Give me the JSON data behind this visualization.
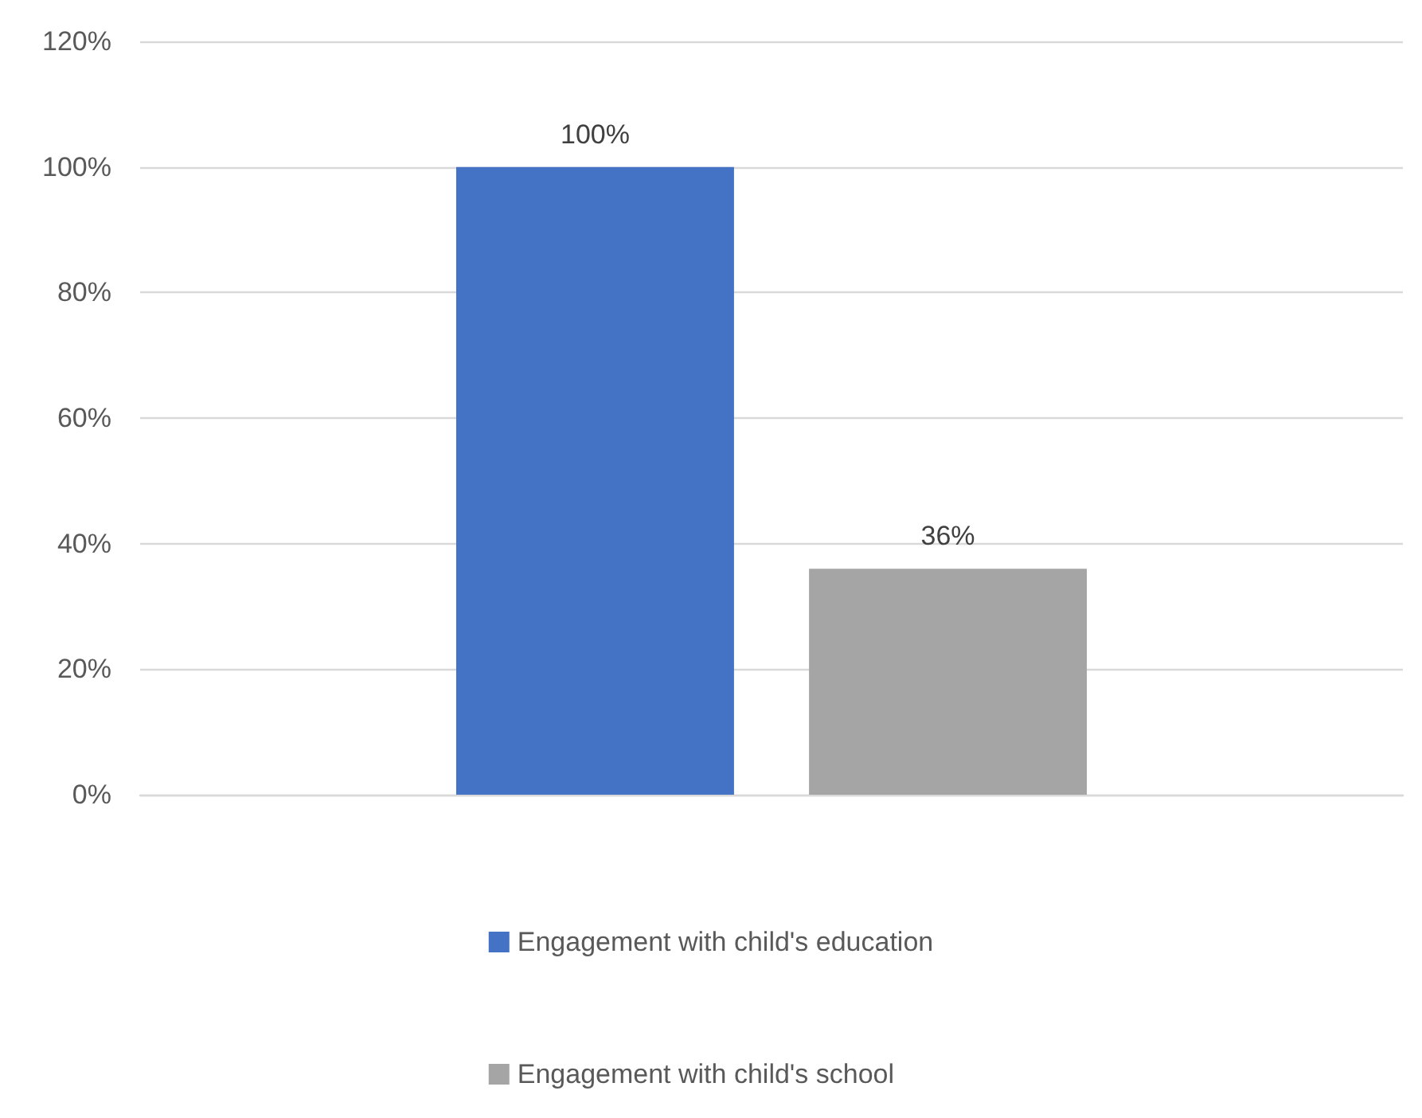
{
  "chart_data": {
    "type": "bar",
    "categories": [
      null
    ],
    "series": [
      {
        "name": "Engagement with child's education",
        "color": "#4472c4",
        "values": [
          100
        ],
        "value_labels": [
          "100%"
        ]
      },
      {
        "name": "Engagement with child's school",
        "color": "#a5a5a5",
        "values": [
          36
        ],
        "value_labels": [
          "36%"
        ]
      }
    ],
    "ylim": [
      0,
      120
    ],
    "yticks": [
      {
        "value": 0,
        "label": "0%"
      },
      {
        "value": 20,
        "label": "20%"
      },
      {
        "value": 40,
        "label": "40%"
      },
      {
        "value": 60,
        "label": "60%"
      },
      {
        "value": 80,
        "label": "80%"
      },
      {
        "value": 100,
        "label": "100%"
      },
      {
        "value": 120,
        "label": "120%"
      }
    ],
    "grid": "y",
    "legend": "bottom"
  }
}
